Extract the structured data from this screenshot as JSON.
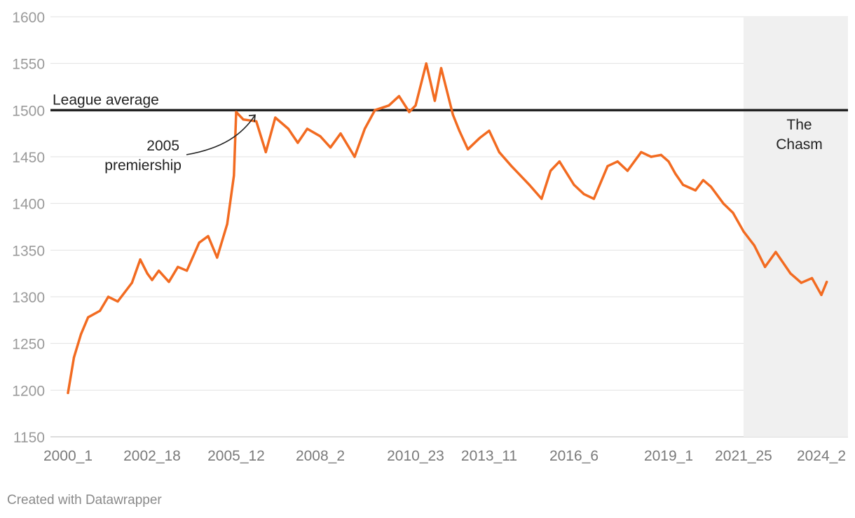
{
  "chart_data": {
    "type": "line",
    "title": "",
    "xlabel": "",
    "ylabel": "",
    "ylim": [
      1150,
      1600
    ],
    "yticks": [
      1150,
      1200,
      1250,
      1300,
      1350,
      1400,
      1450,
      1500,
      1550,
      1600
    ],
    "xticks": [
      "2000_1",
      "2002_18",
      "2005_12",
      "2008_2",
      "2010_23",
      "2013_11",
      "2016_6",
      "2019_1",
      "2021_25",
      "2024_2"
    ],
    "grid": true,
    "reference_line": {
      "value": 1500,
      "label": "League average"
    },
    "shaded_region": {
      "from": "2021_25",
      "to": "2024_2",
      "label_lines": [
        "The",
        "Chasm"
      ]
    },
    "annotation": {
      "label_lines": [
        "2005",
        "premiership"
      ],
      "points_to": "2005_12"
    },
    "line_color": "#f26b21",
    "series": [
      {
        "x": [
          "2000_1",
          "2000_6",
          "2000_12",
          "2000_18",
          "2001_1",
          "2001_8",
          "2001_16",
          "2002_1",
          "2002_8",
          "2002_14",
          "2002_18",
          "2002_24",
          "2003_6",
          "2003_14",
          "2003_22",
          "2004_6",
          "2004_14",
          "2004_22",
          "2005_4",
          "2005_10",
          "2005_12",
          "2005_18",
          "2006_2",
          "2006_10",
          "2006_18",
          "2007_2",
          "2007_10",
          "2007_18",
          "2008_2",
          "2008_10",
          "2008_18",
          "2009_2",
          "2009_10",
          "2009_18",
          "2010_2",
          "2010_10",
          "2010_18",
          "2010_23",
          "2011_6",
          "2011_14",
          "2011_20",
          "2012_4",
          "2012_10",
          "2012_18",
          "2013_2",
          "2013_11",
          "2013_20",
          "2014_4",
          "2014_12",
          "2014_20",
          "2015_4",
          "2015_12",
          "2015_20",
          "2016_6",
          "2016_14",
          "2016_22",
          "2017_6",
          "2017_14",
          "2017_22",
          "2018_6",
          "2018_14",
          "2018_22",
          "2019_1",
          "2019_8",
          "2019_16",
          "2020_2",
          "2020_10",
          "2020_18",
          "2021_4",
          "2021_14",
          "2021_25",
          "2022_6",
          "2022_14",
          "2022_22",
          "2023_6",
          "2023_14",
          "2023_22",
          "2024_2",
          "2024_6"
        ],
        "values": [
          1197,
          1235,
          1260,
          1278,
          1285,
          1300,
          1295,
          1315,
          1340,
          1325,
          1318,
          1328,
          1316,
          1332,
          1328,
          1358,
          1365,
          1342,
          1378,
          1430,
          1498,
          1490,
          1488,
          1455,
          1492,
          1480,
          1465,
          1480,
          1472,
          1460,
          1475,
          1450,
          1480,
          1500,
          1505,
          1515,
          1498,
          1505,
          1550,
          1510,
          1545,
          1495,
          1478,
          1458,
          1470,
          1478,
          1455,
          1440,
          1430,
          1420,
          1405,
          1435,
          1445,
          1420,
          1410,
          1405,
          1440,
          1445,
          1435,
          1455,
          1450,
          1452,
          1445,
          1432,
          1420,
          1414,
          1425,
          1418,
          1400,
          1390,
          1370,
          1355,
          1332,
          1348,
          1325,
          1315,
          1320,
          1302,
          1316
        ]
      }
    ]
  },
  "credit": "Created with Datawrapper"
}
